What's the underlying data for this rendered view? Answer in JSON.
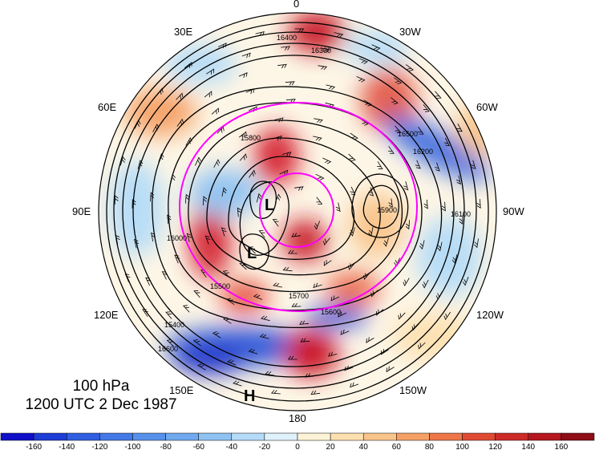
{
  "map": {
    "projection": "north-polar-stereographic",
    "longitude_labels": [
      {
        "text": "0",
        "lon": 0
      },
      {
        "text": "30W",
        "lon": -30
      },
      {
        "text": "60W",
        "lon": -60
      },
      {
        "text": "90W",
        "lon": -90
      },
      {
        "text": "120W",
        "lon": -120
      },
      {
        "text": "150W",
        "lon": -150
      },
      {
        "text": "180",
        "lon": 180
      },
      {
        "text": "150E",
        "lon": 150
      },
      {
        "text": "120E",
        "lon": 120
      },
      {
        "text": "90E",
        "lon": 90
      },
      {
        "text": "60E",
        "lon": 60
      },
      {
        "text": "30E",
        "lon": 30
      }
    ],
    "contour_labels": [
      "16400",
      "16600",
      "16300",
      "16500",
      "16200",
      "15700",
      "16100",
      "15800",
      "15500",
      "15900",
      "16000",
      "15600",
      "15400"
    ],
    "pressure_centers": [
      {
        "letter": "L",
        "name": "low-center-1"
      },
      {
        "letter": "L",
        "name": "low-center-2"
      },
      {
        "letter": "H",
        "name": "high-center"
      }
    ],
    "colors": {
      "contour": "#000000",
      "circle": "#ff00ff",
      "warm": "#c8102e",
      "cold": "#1f3fd0"
    }
  },
  "title": {
    "level": "100 hPa",
    "time": "1200 UTC 2 Dec 1987"
  },
  "colorbar": {
    "ticks": [
      "-160",
      "-140",
      "-120",
      "-100",
      "-80",
      "-60",
      "-40",
      "-20",
      "0",
      "20",
      "40",
      "60",
      "80",
      "100",
      "120",
      "140",
      "160"
    ],
    "colors": [
      "#1010c8",
      "#1e3cd6",
      "#2f5ee0",
      "#4378e6",
      "#5891ea",
      "#70a9ee",
      "#8fc2f2",
      "#b4dbf7",
      "#dff2fc",
      "#fdf3d6",
      "#fce0b0",
      "#f9c48a",
      "#f5a066",
      "#ee7648",
      "#e04a34",
      "#cc2a28",
      "#b5161f",
      "#8e0d16"
    ]
  }
}
